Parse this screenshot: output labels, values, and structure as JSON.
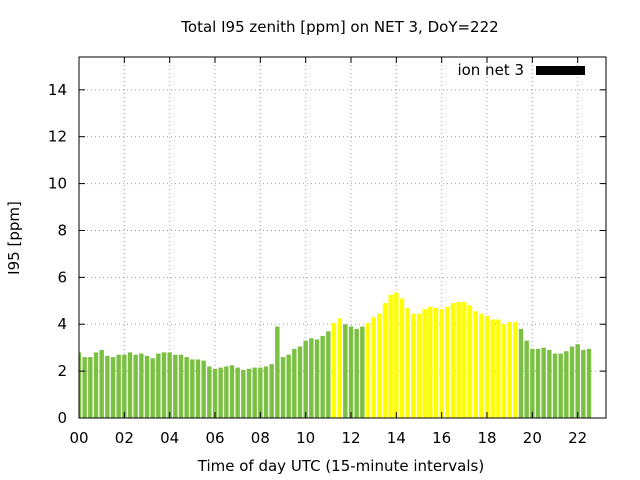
{
  "chart_data": {
    "type": "bar",
    "title": "Total I95 zenith [ppm] on NET 3, DoY=222",
    "xlabel": "Time of day UTC (15-minute intervals)",
    "ylabel": "I95 [ppm]",
    "xlim": [
      0,
      23.25
    ],
    "ylim": [
      0,
      15.4
    ],
    "x_ticks": [
      "00",
      "02",
      "04",
      "06",
      "08",
      "10",
      "12",
      "14",
      "16",
      "18",
      "20",
      "22"
    ],
    "y_ticks": [
      "0",
      "2",
      "4",
      "6",
      "8",
      "10",
      "12",
      "14"
    ],
    "grid": true,
    "legend": {
      "label": "ion net 3",
      "placement": "top-right",
      "color": "#000000"
    },
    "colors": {
      "normal": "#7bc043",
      "highlight": "#ffff00"
    },
    "interval_hours": 0.25,
    "values": [
      2.8,
      2.6,
      2.6,
      2.8,
      2.9,
      2.65,
      2.6,
      2.7,
      2.7,
      2.8,
      2.7,
      2.75,
      2.65,
      2.55,
      2.75,
      2.8,
      2.8,
      2.7,
      2.7,
      2.6,
      2.5,
      2.5,
      2.45,
      2.2,
      2.1,
      2.15,
      2.2,
      2.25,
      2.15,
      2.05,
      2.1,
      2.15,
      2.15,
      2.2,
      2.3,
      3.9,
      2.6,
      2.7,
      2.95,
      3.05,
      3.3,
      3.4,
      3.35,
      3.5,
      3.7,
      4.05,
      4.25,
      4.0,
      3.9,
      3.8,
      3.9,
      4.05,
      4.3,
      4.45,
      4.9,
      5.25,
      5.35,
      5.1,
      4.7,
      4.45,
      4.45,
      4.65,
      4.75,
      4.7,
      4.65,
      4.75,
      4.9,
      4.95,
      4.95,
      4.8,
      4.55,
      4.45,
      4.35,
      4.2,
      4.2,
      4.0,
      4.1,
      4.1,
      3.8,
      3.3,
      2.95,
      2.95,
      3.0,
      2.9,
      2.75,
      2.75,
      2.85,
      3.05,
      3.15,
      2.9,
      2.95
    ],
    "highlight_indices": [
      45,
      46,
      51,
      52,
      53,
      54,
      55,
      56,
      57,
      58,
      59,
      60,
      61,
      62,
      63,
      64,
      65,
      66,
      67,
      68,
      69,
      70,
      71,
      72,
      73,
      74,
      75,
      76,
      77
    ]
  }
}
